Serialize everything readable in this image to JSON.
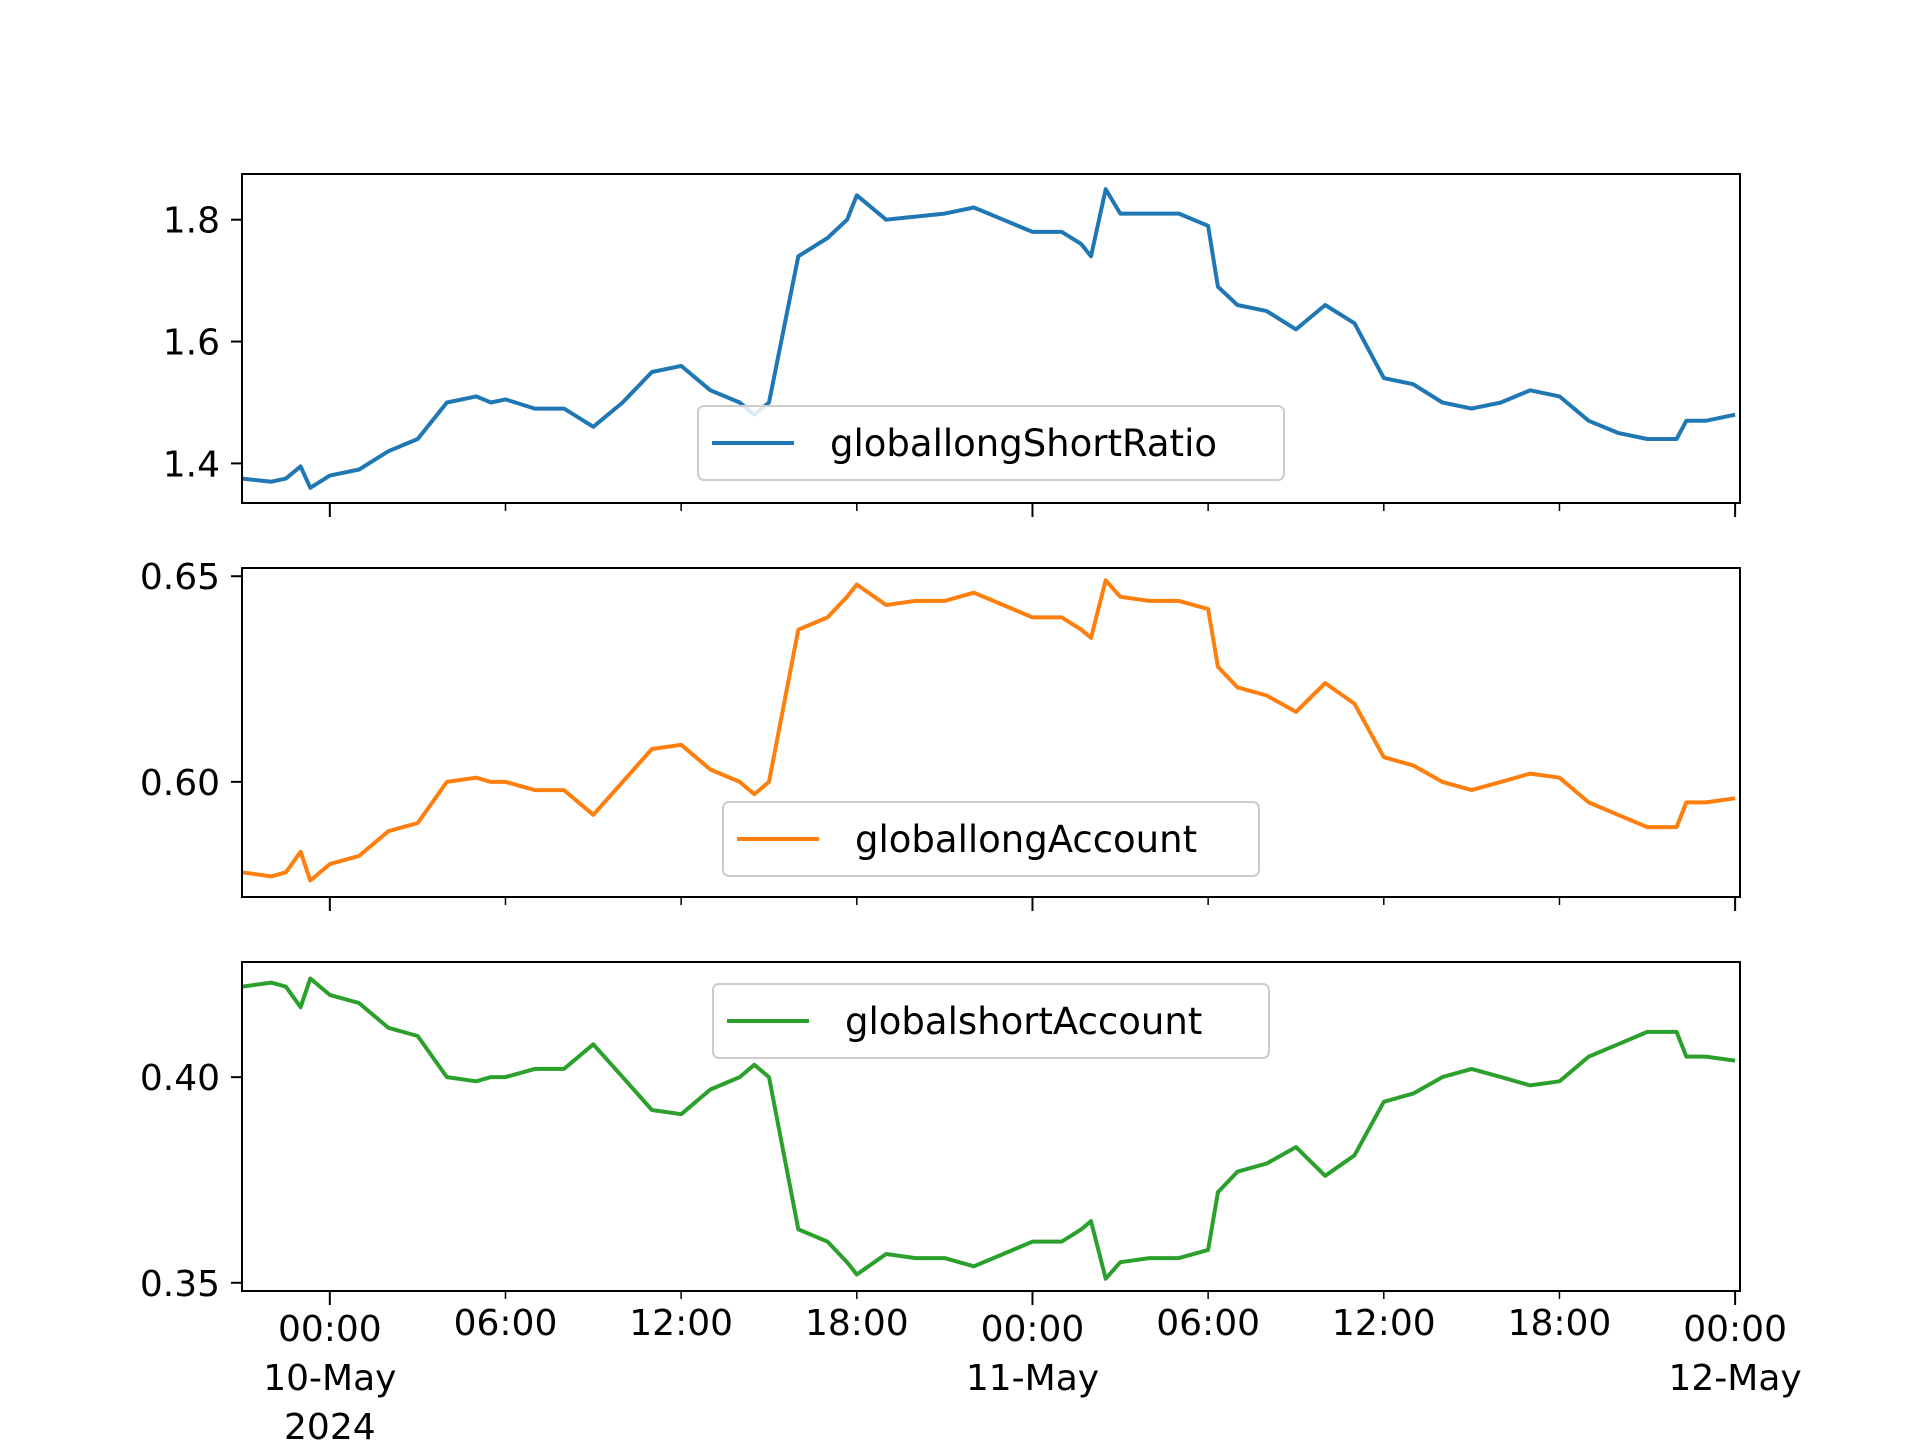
{
  "chart_data": [
    {
      "type": "line",
      "series": [
        {
          "name": "globallongShortRatio",
          "color": "#1f77b4",
          "x": [
            "2024-05-09 21:00",
            "2024-05-09 22:00",
            "2024-05-09 22:30",
            "2024-05-09 23:00",
            "2024-05-09 23:20",
            "2024-05-10 00:00",
            "2024-05-10 01:00",
            "2024-05-10 02:00",
            "2024-05-10 03:00",
            "2024-05-10 04:00",
            "2024-05-10 05:00",
            "2024-05-10 05:30",
            "2024-05-10 06:00",
            "2024-05-10 07:00",
            "2024-05-10 08:00",
            "2024-05-10 09:00",
            "2024-05-10 10:00",
            "2024-05-10 11:00",
            "2024-05-10 12:00",
            "2024-05-10 13:00",
            "2024-05-10 14:00",
            "2024-05-10 14:30",
            "2024-05-10 15:00",
            "2024-05-10 16:00",
            "2024-05-10 17:00",
            "2024-05-10 17:40",
            "2024-05-10 18:00",
            "2024-05-10 19:00",
            "2024-05-10 20:00",
            "2024-05-10 21:00",
            "2024-05-10 22:00",
            "2024-05-10 23:00",
            "2024-05-11 00:00",
            "2024-05-11 01:00",
            "2024-05-11 01:40",
            "2024-05-11 02:00",
            "2024-05-11 02:30",
            "2024-05-11 03:00",
            "2024-05-11 04:00",
            "2024-05-11 05:00",
            "2024-05-11 06:00",
            "2024-05-11 06:20",
            "2024-05-11 07:00",
            "2024-05-11 08:00",
            "2024-05-11 09:00",
            "2024-05-11 10:00",
            "2024-05-11 11:00",
            "2024-05-11 12:00",
            "2024-05-11 13:00",
            "2024-05-11 14:00",
            "2024-05-11 15:00",
            "2024-05-11 16:00",
            "2024-05-11 17:00",
            "2024-05-11 18:00",
            "2024-05-11 19:00",
            "2024-05-11 20:00",
            "2024-05-11 21:00",
            "2024-05-11 22:00",
            "2024-05-11 22:20",
            "2024-05-11 23:00",
            "2024-05-12 00:00"
          ],
          "values": [
            1.375,
            1.37,
            1.375,
            1.395,
            1.36,
            1.38,
            1.39,
            1.42,
            1.44,
            1.5,
            1.51,
            1.5,
            1.505,
            1.49,
            1.49,
            1.46,
            1.5,
            1.55,
            1.56,
            1.52,
            1.5,
            1.48,
            1.5,
            1.74,
            1.77,
            1.8,
            1.84,
            1.8,
            1.805,
            1.81,
            1.82,
            1.8,
            1.78,
            1.78,
            1.76,
            1.74,
            1.85,
            1.81,
            1.81,
            1.81,
            1.79,
            1.69,
            1.66,
            1.65,
            1.62,
            1.66,
            1.63,
            1.54,
            1.53,
            1.5,
            1.49,
            1.5,
            1.52,
            1.51,
            1.47,
            1.45,
            1.44,
            1.44,
            1.47,
            1.47,
            1.48
          ]
        }
      ],
      "ylim": [
        1.335,
        1.875
      ],
      "yticks": [
        {
          "v": 1.4,
          "label": "1.4"
        },
        {
          "v": 1.6,
          "label": "1.6"
        },
        {
          "v": 1.8,
          "label": "1.8"
        }
      ],
      "legend": "lower center"
    },
    {
      "type": "line",
      "series": [
        {
          "name": "globallongAccount",
          "color": "#ff7f0e",
          "x": [
            "2024-05-09 21:00",
            "2024-05-09 22:00",
            "2024-05-09 22:30",
            "2024-05-09 23:00",
            "2024-05-09 23:20",
            "2024-05-10 00:00",
            "2024-05-10 01:00",
            "2024-05-10 02:00",
            "2024-05-10 03:00",
            "2024-05-10 04:00",
            "2024-05-10 05:00",
            "2024-05-10 05:30",
            "2024-05-10 06:00",
            "2024-05-10 07:00",
            "2024-05-10 08:00",
            "2024-05-10 09:00",
            "2024-05-10 10:00",
            "2024-05-10 11:00",
            "2024-05-10 12:00",
            "2024-05-10 13:00",
            "2024-05-10 14:00",
            "2024-05-10 14:30",
            "2024-05-10 15:00",
            "2024-05-10 16:00",
            "2024-05-10 17:00",
            "2024-05-10 17:40",
            "2024-05-10 18:00",
            "2024-05-10 19:00",
            "2024-05-10 20:00",
            "2024-05-10 21:00",
            "2024-05-10 22:00",
            "2024-05-10 23:00",
            "2024-05-11 00:00",
            "2024-05-11 01:00",
            "2024-05-11 01:40",
            "2024-05-11 02:00",
            "2024-05-11 02:30",
            "2024-05-11 03:00",
            "2024-05-11 04:00",
            "2024-05-11 05:00",
            "2024-05-11 06:00",
            "2024-05-11 06:20",
            "2024-05-11 07:00",
            "2024-05-11 08:00",
            "2024-05-11 09:00",
            "2024-05-11 10:00",
            "2024-05-11 11:00",
            "2024-05-11 12:00",
            "2024-05-11 13:00",
            "2024-05-11 14:00",
            "2024-05-11 15:00",
            "2024-05-11 16:00",
            "2024-05-11 17:00",
            "2024-05-11 18:00",
            "2024-05-11 19:00",
            "2024-05-11 20:00",
            "2024-05-11 21:00",
            "2024-05-11 22:00",
            "2024-05-11 22:20",
            "2024-05-11 23:00",
            "2024-05-12 00:00"
          ],
          "values": [
            0.578,
            0.577,
            0.578,
            0.583,
            0.576,
            0.58,
            0.582,
            0.588,
            0.59,
            0.6,
            0.601,
            0.6,
            0.6,
            0.598,
            0.598,
            0.592,
            0.6,
            0.608,
            0.609,
            0.603,
            0.6,
            0.597,
            0.6,
            0.637,
            0.64,
            0.645,
            0.648,
            0.643,
            0.644,
            0.644,
            0.646,
            0.643,
            0.64,
            0.64,
            0.637,
            0.635,
            0.649,
            0.645,
            0.644,
            0.644,
            0.642,
            0.628,
            0.623,
            0.621,
            0.617,
            0.624,
            0.619,
            0.606,
            0.604,
            0.6,
            0.598,
            0.6,
            0.602,
            0.601,
            0.595,
            0.592,
            0.589,
            0.589,
            0.595,
            0.595,
            0.596
          ]
        }
      ],
      "ylim": [
        0.572,
        0.652
      ],
      "yticks": [
        {
          "v": 0.6,
          "label": "0.60"
        },
        {
          "v": 0.65,
          "label": "0.65"
        }
      ],
      "legend": "lower center"
    },
    {
      "type": "line",
      "series": [
        {
          "name": "globalshortAccount",
          "color": "#2ca02c",
          "x": [
            "2024-05-09 21:00",
            "2024-05-09 22:00",
            "2024-05-09 22:30",
            "2024-05-09 23:00",
            "2024-05-09 23:20",
            "2024-05-10 00:00",
            "2024-05-10 01:00",
            "2024-05-10 02:00",
            "2024-05-10 03:00",
            "2024-05-10 04:00",
            "2024-05-10 05:00",
            "2024-05-10 05:30",
            "2024-05-10 06:00",
            "2024-05-10 07:00",
            "2024-05-10 08:00",
            "2024-05-10 09:00",
            "2024-05-10 10:00",
            "2024-05-10 11:00",
            "2024-05-10 12:00",
            "2024-05-10 13:00",
            "2024-05-10 14:00",
            "2024-05-10 14:30",
            "2024-05-10 15:00",
            "2024-05-10 16:00",
            "2024-05-10 17:00",
            "2024-05-10 17:40",
            "2024-05-10 18:00",
            "2024-05-10 19:00",
            "2024-05-10 20:00",
            "2024-05-10 21:00",
            "2024-05-10 22:00",
            "2024-05-10 23:00",
            "2024-05-11 00:00",
            "2024-05-11 01:00",
            "2024-05-11 01:40",
            "2024-05-11 02:00",
            "2024-05-11 02:30",
            "2024-05-11 03:00",
            "2024-05-11 04:00",
            "2024-05-11 05:00",
            "2024-05-11 06:00",
            "2024-05-11 06:20",
            "2024-05-11 07:00",
            "2024-05-11 08:00",
            "2024-05-11 09:00",
            "2024-05-11 10:00",
            "2024-05-11 11:00",
            "2024-05-11 12:00",
            "2024-05-11 13:00",
            "2024-05-11 14:00",
            "2024-05-11 15:00",
            "2024-05-11 16:00",
            "2024-05-11 17:00",
            "2024-05-11 18:00",
            "2024-05-11 19:00",
            "2024-05-11 20:00",
            "2024-05-11 21:00",
            "2024-05-11 22:00",
            "2024-05-11 22:20",
            "2024-05-11 23:00",
            "2024-05-12 00:00"
          ],
          "values": [
            0.422,
            0.423,
            0.422,
            0.417,
            0.424,
            0.42,
            0.418,
            0.412,
            0.41,
            0.4,
            0.399,
            0.4,
            0.4,
            0.402,
            0.402,
            0.408,
            0.4,
            0.392,
            0.391,
            0.397,
            0.4,
            0.403,
            0.4,
            0.363,
            0.36,
            0.355,
            0.352,
            0.357,
            0.356,
            0.356,
            0.354,
            0.357,
            0.36,
            0.36,
            0.363,
            0.365,
            0.351,
            0.355,
            0.356,
            0.356,
            0.358,
            0.372,
            0.377,
            0.379,
            0.383,
            0.376,
            0.381,
            0.394,
            0.396,
            0.4,
            0.402,
            0.4,
            0.398,
            0.399,
            0.405,
            0.408,
            0.411,
            0.411,
            0.405,
            0.405,
            0.404
          ]
        }
      ],
      "ylim": [
        0.348,
        0.428
      ],
      "yticks": [
        {
          "v": 0.35,
          "label": "0.35"
        },
        {
          "v": 0.4,
          "label": "0.40"
        }
      ],
      "legend": "upper center"
    }
  ],
  "xaxis": {
    "range": [
      "2024-05-09 21:00",
      "2024-05-12 00:10"
    ],
    "major_ticks": [
      {
        "at": "2024-05-10 00:00",
        "lines": [
          "00:00",
          "10-May",
          "2024"
        ]
      },
      {
        "at": "2024-05-11 00:00",
        "lines": [
          "00:00",
          "11-May"
        ]
      },
      {
        "at": "2024-05-12 00:00",
        "lines": [
          "00:00",
          "12-May"
        ]
      }
    ],
    "minor_ticks": [
      {
        "at": "2024-05-10 06:00",
        "label": "06:00"
      },
      {
        "at": "2024-05-10 12:00",
        "label": "12:00"
      },
      {
        "at": "2024-05-10 18:00",
        "label": "18:00"
      },
      {
        "at": "2024-05-11 06:00",
        "label": "06:00"
      },
      {
        "at": "2024-05-11 12:00",
        "label": "12:00"
      },
      {
        "at": "2024-05-11 18:00",
        "label": "18:00"
      }
    ]
  }
}
